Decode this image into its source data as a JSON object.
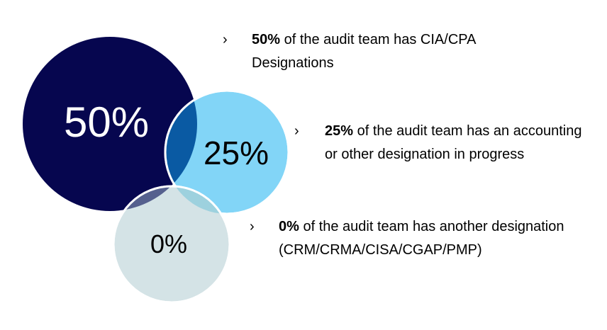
{
  "circles": [
    {
      "label": "50%",
      "color": "#06064f",
      "text_color": "#ffffff"
    },
    {
      "label": "25%",
      "color": "#82d5f7",
      "text_color": "#000000"
    },
    {
      "label": "0%",
      "color": "#d4e3e6",
      "text_color": "#000000"
    }
  ],
  "bullets": [
    {
      "chevron": "›",
      "bold": "50%",
      "text": " of the audit team has CIA/CPA Designations"
    },
    {
      "chevron": "›",
      "bold": "25%",
      "text": " of the audit team has an accounting or other designation in progress"
    },
    {
      "chevron": "›",
      "bold": "0%",
      "text": " of the audit team has another designation (CRM/CRMA/CISA/CGAP/PMP)"
    }
  ]
}
